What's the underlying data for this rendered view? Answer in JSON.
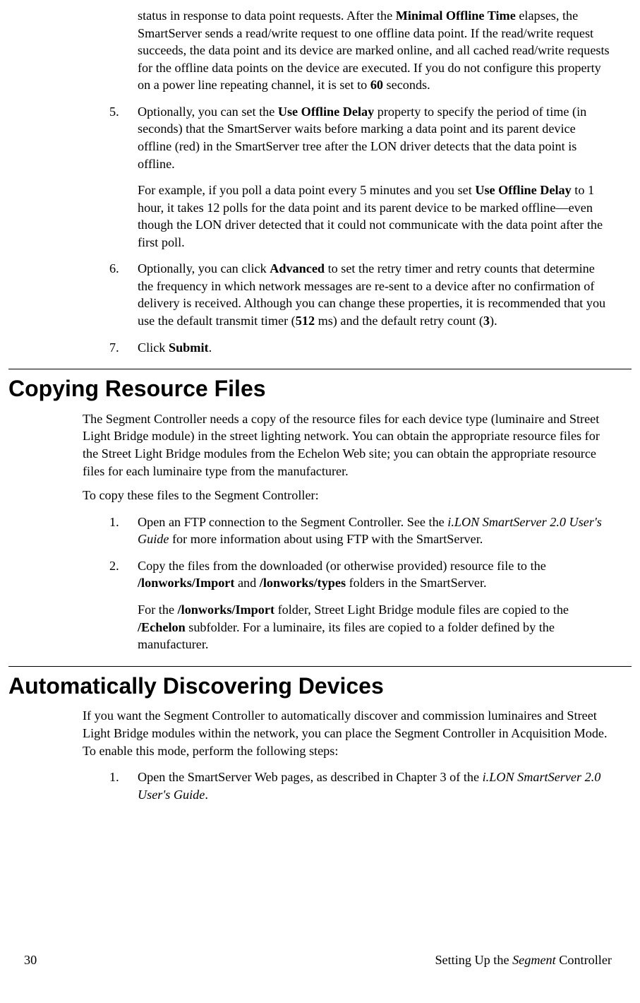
{
  "continuation": {
    "text_a": "status in response to data point requests.  After the ",
    "bold_a": "Minimal Offline Time",
    "text_b": " elapses, the SmartServer sends a read/write request to one offline data point.  If the read/write request succeeds, the data point and its device are marked online, and all cached read/write requests for the offline data points on the device are executed.  If you do not configure this property on a power line repeating channel, it is set to ",
    "bold_b": "60",
    "text_c": " seconds."
  },
  "item5": {
    "num": "5.",
    "p1_a": "Optionally, you can set the ",
    "p1_bold": "Use Offline Delay",
    "p1_b": " property to specify the period of time (in seconds) that the SmartServer waits before marking a data point and its parent device offline (red) in the SmartServer tree after the LON driver detects that the data point is offline.",
    "p2_a": "For example, if you poll a data point every 5 minutes and you set ",
    "p2_bold": "Use Offline Delay",
    "p2_b": " to 1 hour, it takes 12 polls for the data point and its parent device to be marked offline—even though the LON driver detected that it could not communicate with the data point after the first poll."
  },
  "item6": {
    "num": "6.",
    "a": "Optionally, you can click ",
    "bold1": "Advanced",
    "b": " to set the retry timer and retry counts that determine the frequency in which network messages are re-sent to a device after no confirmation of delivery is received.  Although you can change these properties, it is recommended that you use the default transmit timer (",
    "bold2": "512",
    "c": " ms) and the default retry count (",
    "bold3": "3",
    "d": ")."
  },
  "item7": {
    "num": "7.",
    "a": "Click ",
    "bold": "Submit",
    "b": "."
  },
  "h_copy": "Copying Resource Files",
  "copy_p1": "The Segment Controller needs a copy of the resource files for each device type (luminaire and Street Light Bridge module) in the street lighting network.  You can obtain the appropriate resource files for the Street Light Bridge modules from the Echelon Web site; you can obtain the appropriate resource files for each luminaire type from the manufacturer.",
  "copy_p2": "To copy these files to the Segment Controller:",
  "copy_1": {
    "num": "1.",
    "a": "Open an FTP connection to the Segment Controller.  See the ",
    "it": "i.LON SmartServer 2.0 User's Guide",
    "b": " for more information about using FTP with the SmartServer."
  },
  "copy_2": {
    "num": "2.",
    "p1_a": "Copy the files from the downloaded (or otherwise provided) resource file to the ",
    "p1_b1": "/lonworks/Import",
    "p1_c": " and ",
    "p1_b2": "/lonworks/types",
    "p1_d": " folders in the SmartServer.",
    "p2_a": "For the ",
    "p2_b1": "/lonworks/Import",
    "p2_b": " folder, Street Light Bridge module files are copied to the ",
    "p2_b2": "/Echelon",
    "p2_c": " subfolder.  For a luminaire, its files are copied to a folder defined by the manufacturer."
  },
  "h_auto": "Automatically Discovering Devices",
  "auto_p1": "If you want the Segment Controller to automatically discover and commission luminaires and Street Light Bridge modules within the network, you can place the Segment Controller in Acquisition Mode.  To enable this mode, perform the following steps:",
  "auto_1": {
    "num": "1.",
    "a": "Open the SmartServer Web pages, as described in Chapter 3 of the ",
    "it": "i.LON SmartServer 2.0 User's Guide",
    "b": "."
  },
  "footer": {
    "page": "30",
    "title_a": "Setting Up the ",
    "title_it": "Segment",
    "title_b": " Controller"
  }
}
